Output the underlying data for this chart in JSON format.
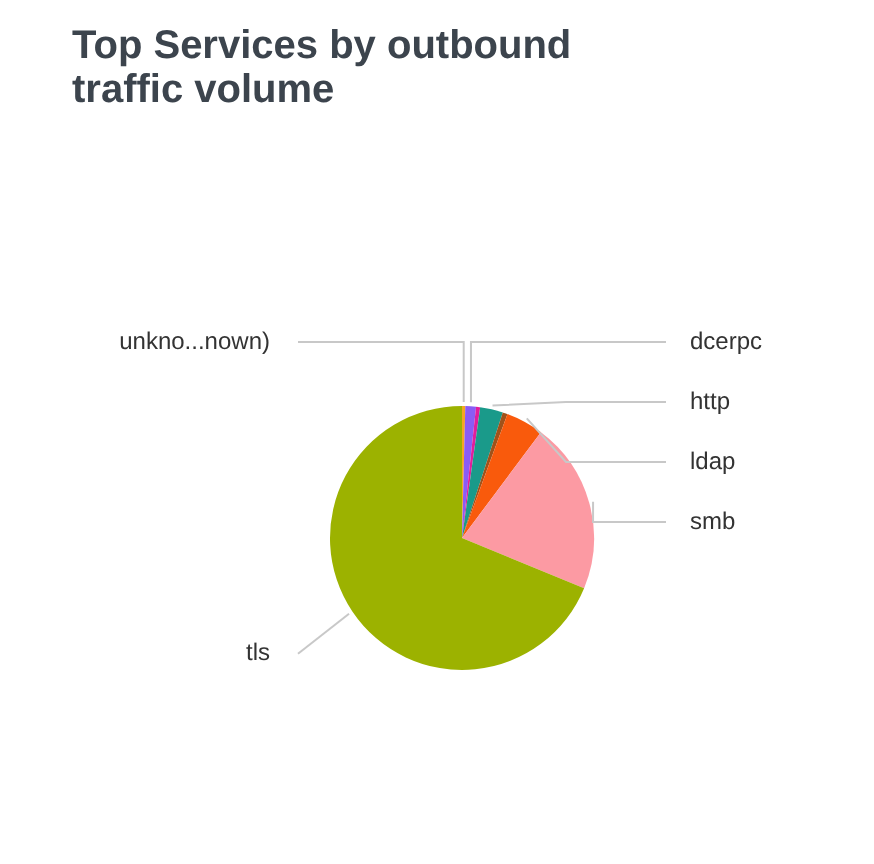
{
  "chart_data": {
    "type": "pie",
    "title": "Top Services by outbound traffic volume",
    "categories": [
      "unkno...nown)",
      "dcerpc",
      null,
      "http",
      null,
      "ldap",
      "smb",
      "tls"
    ],
    "values": [
      0.4,
      1.3,
      0.5,
      2.8,
      0.6,
      4.6,
      21,
      68.8
    ],
    "colors": [
      "#f5a623",
      "#8a5cf5",
      "#e11d9c",
      "#1a9a8a",
      "#a0521a",
      "#f95a0c",
      "#fc9aa3",
      "#9cb200"
    ],
    "legend": false
  }
}
